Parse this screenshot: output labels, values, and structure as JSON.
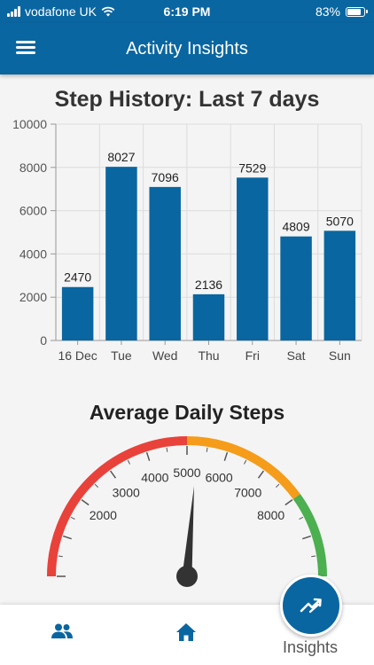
{
  "status_bar": {
    "carrier": "vodafone UK",
    "time": "6:19 PM",
    "battery_text": "83%",
    "battery_level": 0.83
  },
  "app_bar": {
    "title": "Activity Insights",
    "menu_icon": "hamburger-menu-icon"
  },
  "chart_data": {
    "type": "bar",
    "title": "Step History: Last 7 days",
    "categories": [
      "16 Dec",
      "Tue",
      "Wed",
      "Thu",
      "Fri",
      "Sat",
      "Sun"
    ],
    "values": [
      2470,
      8027,
      7096,
      2136,
      7529,
      4809,
      5070
    ],
    "ylim": [
      0,
      10000
    ],
    "yticks": [
      0,
      2000,
      4000,
      6000,
      8000,
      10000
    ],
    "color": "#0a66a0",
    "grid": true,
    "xlabel": "",
    "ylabel": ""
  },
  "gauge": {
    "title": "Average Daily Steps",
    "tick_labels": [
      "2000",
      "3000",
      "4000",
      "5000",
      "6000",
      "7000",
      "8000"
    ],
    "visible_range": [
      0,
      10000
    ],
    "needle_value": 5250,
    "bands": [
      {
        "from": 0,
        "to": 5000,
        "color": "#e8423a"
      },
      {
        "from": 5000,
        "to": 8000,
        "color": "#f59c1a"
      },
      {
        "from": 8000,
        "to": 10000,
        "color": "#4caf50"
      }
    ]
  },
  "bottom_nav": {
    "items": [
      {
        "icon": "people-icon"
      },
      {
        "icon": "home-icon"
      }
    ],
    "active": {
      "label": "Insights",
      "icon": "trending-chart-icon"
    }
  }
}
